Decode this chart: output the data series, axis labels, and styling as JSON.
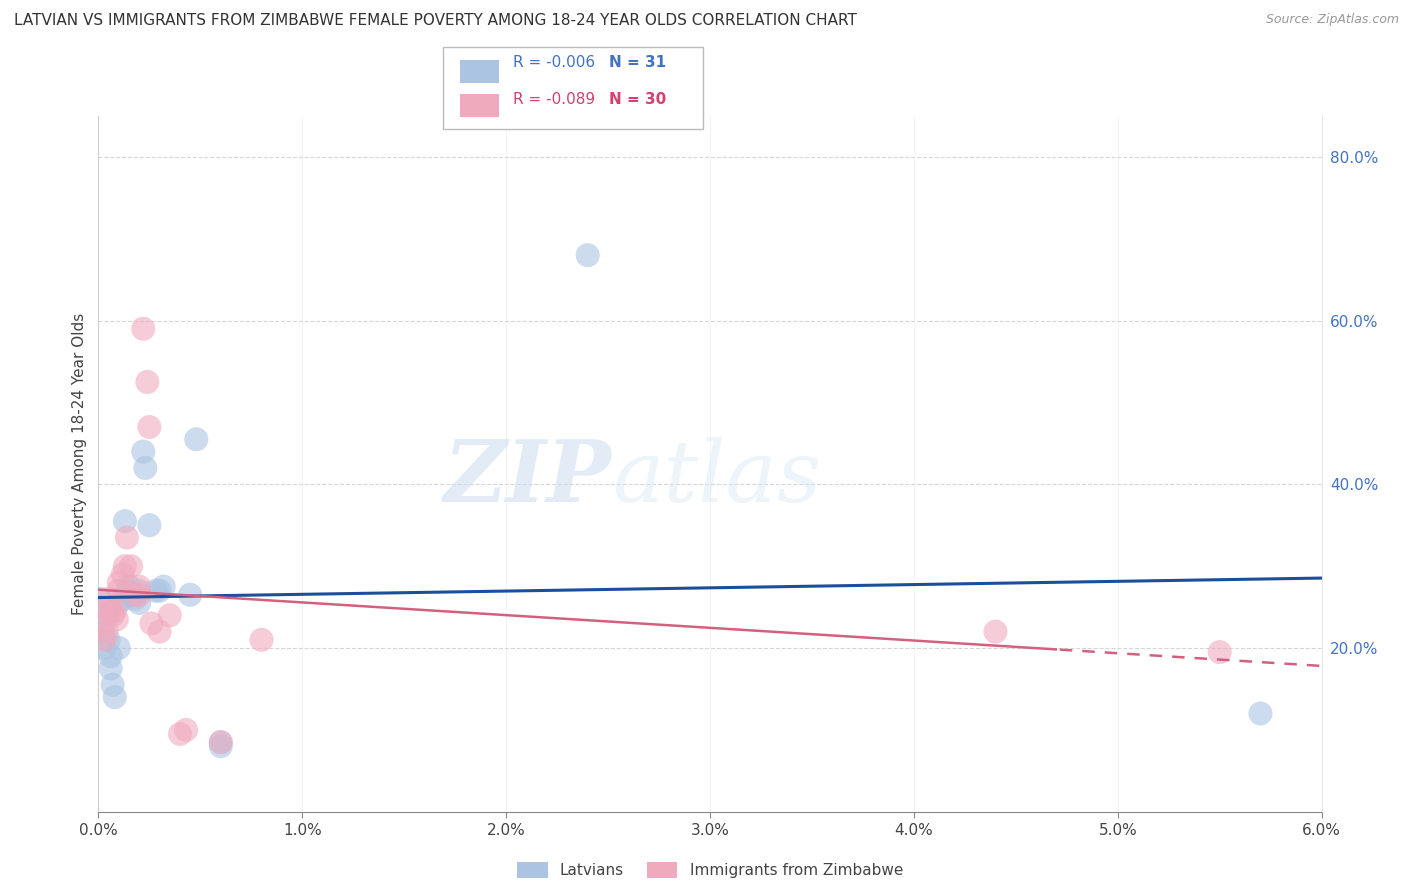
{
  "title": "LATVIAN VS IMMIGRANTS FROM ZIMBABWE FEMALE POVERTY AMONG 18-24 YEAR OLDS CORRELATION CHART",
  "source": "Source: ZipAtlas.com",
  "ylabel": "Female Poverty Among 18-24 Year Olds",
  "xlim": [
    0.0,
    0.06
  ],
  "ylim": [
    0.0,
    0.85
  ],
  "xticks": [
    0.0,
    0.01,
    0.02,
    0.03,
    0.04,
    0.05,
    0.06
  ],
  "xticklabels": [
    "0.0%",
    "1.0%",
    "2.0%",
    "3.0%",
    "4.0%",
    "5.0%",
    "6.0%"
  ],
  "yticks_right": [
    0.2,
    0.4,
    0.6,
    0.8
  ],
  "yticklabels_right": [
    "20.0%",
    "40.0%",
    "60.0%",
    "80.0%"
  ],
  "latvian_color": "#aac4e2",
  "zimbabwe_color": "#f0aabe",
  "latvian_line_color": "#1b4f9c",
  "zimbabwe_line_color": "#d46080",
  "r_latvian": "-0.006",
  "n_latvian": "31",
  "r_zimbabwe": "-0.089",
  "n_zimbabwe": "30",
  "legend_latvians": "Latvians",
  "legend_zimbabwe": "Immigrants from Zimbabwe",
  "watermark_zip": "ZIP",
  "watermark_atlas": "atlas",
  "latvian_x": [
    0.0001,
    0.0002,
    0.0003,
    0.0004,
    0.0005,
    0.0006,
    0.0006,
    0.0007,
    0.0008,
    0.001,
    0.001,
    0.0012,
    0.0013,
    0.0014,
    0.0015,
    0.0016,
    0.0018,
    0.002,
    0.002,
    0.0022,
    0.0023,
    0.0025,
    0.0028,
    0.003,
    0.0032,
    0.0045,
    0.0048,
    0.006,
    0.006,
    0.024,
    0.057
  ],
  "latvian_y": [
    0.26,
    0.22,
    0.2,
    0.24,
    0.21,
    0.19,
    0.175,
    0.155,
    0.14,
    0.255,
    0.2,
    0.26,
    0.355,
    0.27,
    0.275,
    0.265,
    0.26,
    0.27,
    0.255,
    0.44,
    0.42,
    0.35,
    0.27,
    0.27,
    0.275,
    0.265,
    0.455,
    0.08,
    0.085,
    0.68,
    0.12
  ],
  "zimbabwe_x": [
    0.0001,
    0.0002,
    0.0003,
    0.0004,
    0.0005,
    0.0006,
    0.0007,
    0.0008,
    0.0009,
    0.001,
    0.001,
    0.0012,
    0.0013,
    0.0014,
    0.0016,
    0.0018,
    0.002,
    0.002,
    0.0022,
    0.0024,
    0.0025,
    0.0026,
    0.003,
    0.0035,
    0.004,
    0.0043,
    0.006,
    0.008,
    0.044,
    0.055
  ],
  "zimbabwe_y": [
    0.25,
    0.23,
    0.21,
    0.22,
    0.26,
    0.245,
    0.24,
    0.245,
    0.235,
    0.28,
    0.27,
    0.29,
    0.3,
    0.335,
    0.3,
    0.265,
    0.265,
    0.275,
    0.59,
    0.525,
    0.47,
    0.23,
    0.22,
    0.24,
    0.095,
    0.1,
    0.085,
    0.21,
    0.22,
    0.195
  ]
}
